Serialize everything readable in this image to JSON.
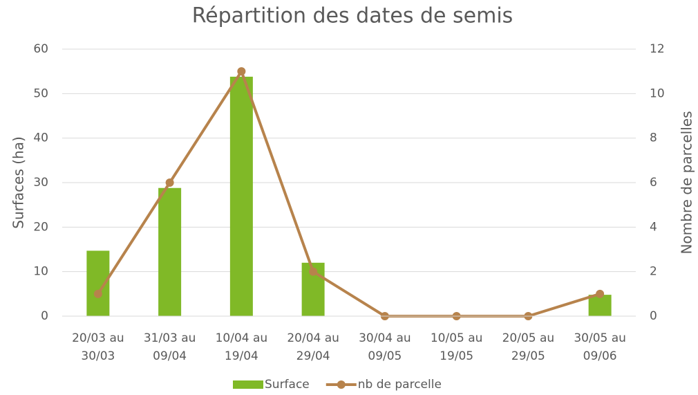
{
  "chart_data": {
    "type": "bar-line",
    "title": "Répartition des dates de semis",
    "y_label": "Surfaces (ha)",
    "y2_label": "Nombre de parcelles",
    "categories": [
      "20/03 au 30/03",
      "31/03 au 09/04",
      "10/04 au 19/04",
      "20/04 au 29/04",
      "30/04 au 09/05",
      "10/05 au 19/05",
      "20/05 au 29/05",
      "30/05 au 09/06"
    ],
    "series": [
      {
        "name": "Surface",
        "type": "bar",
        "color": "#80b927",
        "values": [
          14.7,
          28.8,
          53.8,
          12,
          0,
          0,
          0,
          4.8
        ]
      },
      {
        "name": "nb de parcelle",
        "type": "line",
        "axis": "y2",
        "color": "#b7834c",
        "values": [
          1,
          6,
          11,
          2,
          0,
          0,
          0,
          1
        ]
      }
    ],
    "ylim": [
      0,
      60
    ],
    "yticks": [
      0,
      10,
      20,
      30,
      40,
      50,
      60
    ],
    "y2lim": [
      0,
      12
    ],
    "y2ticks": [
      0,
      2,
      4,
      6,
      8,
      10,
      12
    ],
    "grid": true,
    "legend": "bottom"
  }
}
